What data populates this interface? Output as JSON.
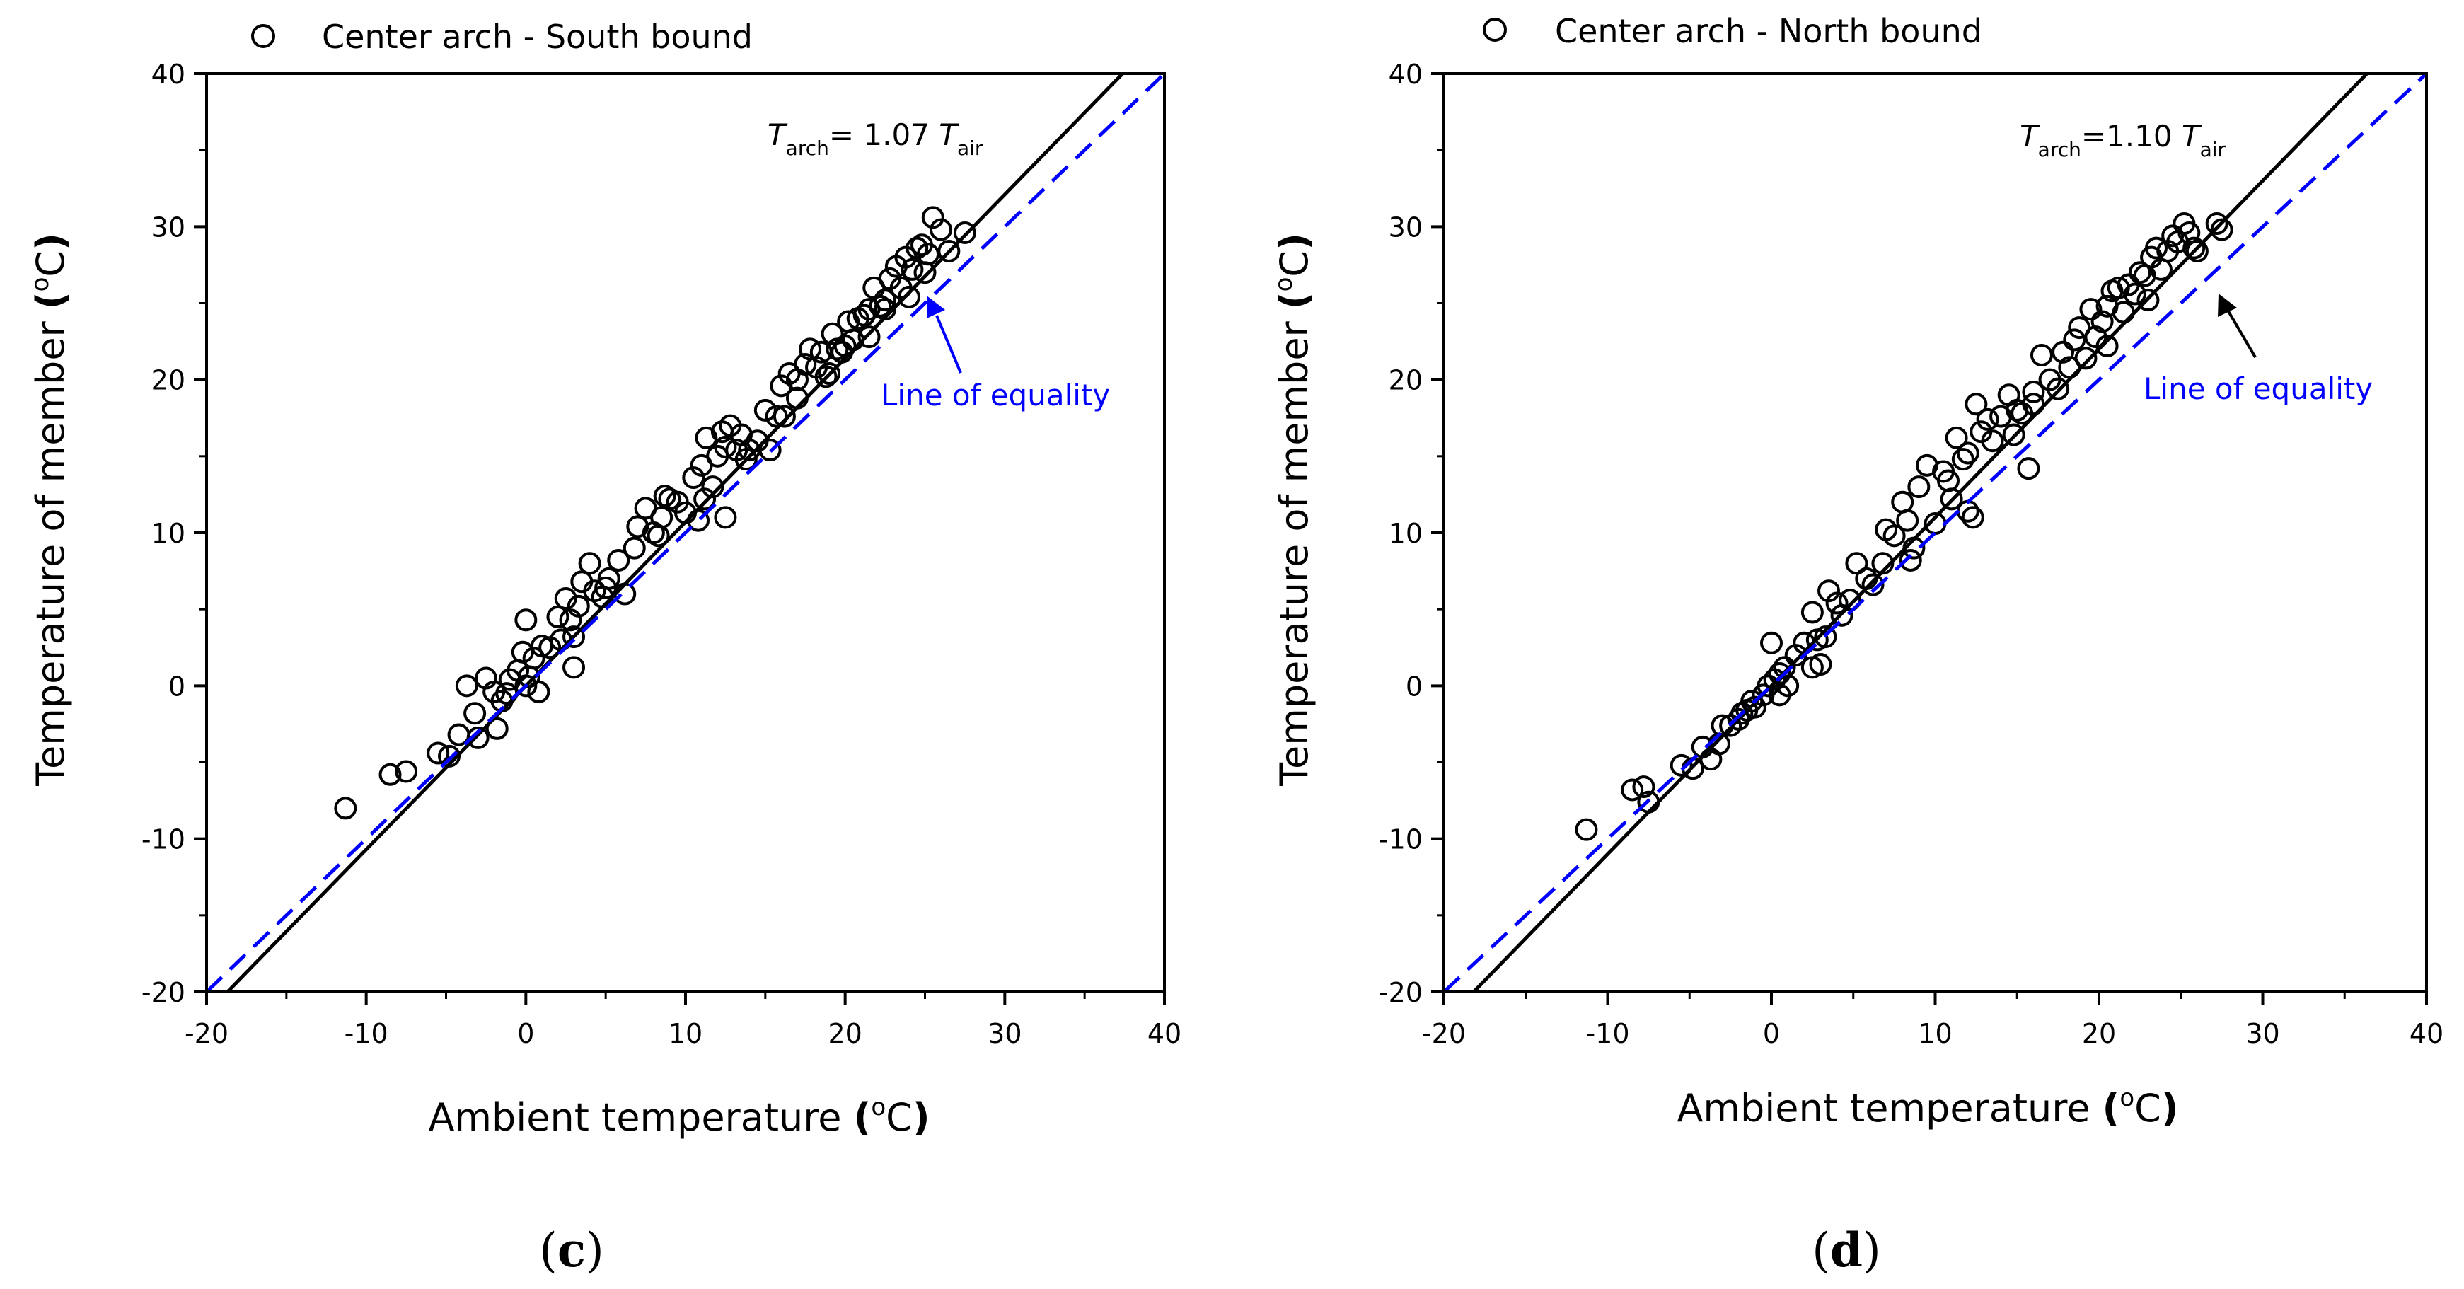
{
  "chart_data": [
    {
      "type": "scatter",
      "panel": "(c)",
      "panel_open": "(",
      "panel_letter": "c",
      "panel_close": ")",
      "xlabel": "Ambient temperature (oC)",
      "xlabel_main": "Ambient temperature ",
      "ylabel": "Temperature of member (oC)",
      "ylabel_main": "Temperature of member ",
      "unit_open": "(",
      "unit_sup": "o",
      "unit_c": "C",
      "unit_close": ")",
      "xlim": [
        -20,
        40
      ],
      "ylim": [
        -20,
        40
      ],
      "xticks": [
        -20,
        -10,
        0,
        10,
        20,
        30,
        40
      ],
      "yticks": [
        -20,
        -10,
        0,
        10,
        20,
        30,
        40
      ],
      "xtick_labels": [
        "-20",
        "-10",
        "0",
        "10",
        "20",
        "30",
        "40"
      ],
      "ytick_labels": [
        "-20",
        "-10",
        "0",
        "10",
        "20",
        "30",
        "40"
      ],
      "legend": "Center arch - South bound",
      "series": [
        {
          "name": "Center arch - South bound",
          "marker": "open-circle",
          "x": [
            -11.3,
            -8.5,
            -7.5,
            -5.5,
            -4.8,
            -4.2,
            -3.7,
            -3.2,
            -2.5,
            -2.0,
            -1.8,
            -1.5,
            -1.2,
            -1.0,
            -0.5,
            -0.2,
            0.0,
            0.2,
            0.5,
            0.8,
            1.0,
            1.5,
            2.0,
            2.5,
            2.8,
            3.0,
            3.3,
            3.5,
            4.0,
            4.3,
            4.8,
            5.2,
            5.8,
            6.2,
            6.8,
            7.0,
            7.5,
            8.0,
            8.3,
            8.7,
            9.0,
            9.5,
            10.0,
            10.5,
            10.8,
            11.0,
            11.3,
            11.7,
            12.0,
            12.3,
            12.5,
            12.8,
            13.2,
            13.5,
            14.0,
            14.5,
            15.0,
            15.3,
            15.7,
            16.0,
            16.5,
            17.0,
            17.5,
            17.8,
            18.2,
            18.5,
            18.8,
            19.2,
            19.5,
            19.8,
            20.2,
            20.5,
            20.8,
            21.2,
            21.5,
            21.8,
            22.2,
            22.5,
            22.8,
            23.2,
            23.5,
            23.8,
            24.2,
            24.5,
            24.8,
            25.2,
            25.5,
            26.0,
            26.5,
            27.5,
            0.0,
            3.0,
            5.0,
            12.5,
            17.0,
            19.0,
            21.5,
            24.0,
            -3.0,
            0.8,
            2.2,
            8.5,
            11.2,
            13.8,
            16.2,
            20.0,
            22.5,
            25.0
          ],
          "y": [
            -8.0,
            -5.8,
            -5.6,
            -4.4,
            -4.6,
            -3.2,
            0.0,
            -1.8,
            0.5,
            -0.4,
            -2.8,
            -1.0,
            -0.5,
            0.4,
            1.0,
            2.2,
            4.3,
            0.6,
            1.8,
            -0.4,
            2.6,
            2.5,
            4.5,
            5.7,
            4.3,
            1.2,
            5.2,
            6.8,
            8.0,
            6.2,
            5.8,
            7.0,
            8.2,
            6.0,
            9.0,
            10.4,
            11.6,
            10.0,
            9.8,
            12.4,
            12.2,
            12.0,
            11.3,
            13.6,
            10.8,
            14.4,
            16.2,
            13.0,
            15.0,
            16.6,
            11.0,
            17.0,
            15.4,
            16.4,
            15.4,
            16.0,
            18.0,
            15.4,
            17.6,
            19.6,
            20.4,
            20.0,
            21.0,
            22.0,
            20.8,
            21.8,
            20.2,
            23.0,
            22.0,
            21.8,
            23.8,
            22.6,
            24.0,
            24.2,
            24.6,
            26.0,
            24.8,
            25.2,
            26.6,
            27.4,
            26.0,
            28.0,
            27.2,
            28.6,
            28.8,
            28.2,
            30.6,
            29.8,
            28.4,
            29.6,
            0.0,
            3.2,
            6.4,
            15.6,
            18.8,
            20.4,
            22.8,
            25.4,
            -3.4,
            -0.4,
            3.0,
            11.0,
            12.2,
            14.8,
            17.6,
            22.2,
            24.6,
            27.0
          ]
        },
        {
          "name": "T_arch = 1.07 T_air",
          "type": "line",
          "style": "solid",
          "color": "#000000",
          "slope": 1.07,
          "intercept": 0
        },
        {
          "name": "Line of equality",
          "type": "line",
          "style": "dashed",
          "color": "#0000ff",
          "slope": 1.0,
          "intercept": 0
        }
      ],
      "annotations": [
        {
          "role": "fit_equation",
          "text": "T_arch= 1.07 T_air",
          "t1": "T",
          "s1": "arch",
          "mid": "= 1.07 ",
          "t2": "T",
          "s2": "air"
        },
        {
          "role": "equality_label",
          "text": "Line of equality",
          "color": "#0000ff",
          "arrow_color": "#0000ff",
          "arrow_target": [
            25.3,
            25.3
          ]
        }
      ]
    },
    {
      "type": "scatter",
      "panel": "(d)",
      "panel_open": "(",
      "panel_letter": "d",
      "panel_close": ")",
      "xlabel": "Ambient temperature (oC)",
      "xlabel_main": "Ambient temperature ",
      "ylabel": "Temperature of member (oC)",
      "ylabel_main": "Temperature of member ",
      "unit_open": "(",
      "unit_sup": "o",
      "unit_c": "C",
      "unit_close": ")",
      "xlim": [
        -20,
        40
      ],
      "ylim": [
        -20,
        40
      ],
      "xticks": [
        -20,
        -10,
        0,
        10,
        20,
        30,
        40
      ],
      "yticks": [
        -20,
        -10,
        0,
        10,
        20,
        30,
        40
      ],
      "xtick_labels": [
        "-20",
        "-10",
        "0",
        "10",
        "20",
        "30",
        "40"
      ],
      "ytick_labels": [
        "-20",
        "-10",
        "0",
        "10",
        "20",
        "30",
        "40"
      ],
      "legend": "Center arch - North bound",
      "series": [
        {
          "name": "Center arch - North bound",
          "marker": "open-circle",
          "x": [
            -11.3,
            -8.5,
            -7.8,
            -7.5,
            -5.5,
            -4.8,
            -4.2,
            -3.7,
            -3.2,
            -2.5,
            -2.0,
            -1.8,
            -1.5,
            -1.2,
            -1.0,
            -0.5,
            -0.2,
            0.0,
            0.2,
            0.5,
            0.8,
            1.0,
            1.5,
            2.0,
            2.5,
            2.8,
            3.0,
            3.3,
            3.5,
            4.0,
            4.3,
            4.8,
            5.2,
            5.8,
            6.2,
            6.8,
            7.0,
            7.5,
            8.0,
            8.3,
            8.7,
            9.0,
            9.5,
            10.0,
            10.5,
            10.8,
            11.0,
            11.3,
            11.7,
            12.0,
            12.3,
            12.5,
            12.8,
            13.2,
            13.5,
            14.0,
            14.5,
            15.0,
            15.3,
            15.7,
            16.0,
            16.5,
            17.0,
            17.5,
            17.8,
            18.2,
            18.5,
            18.8,
            19.2,
            19.5,
            19.8,
            20.2,
            20.5,
            20.8,
            21.2,
            21.5,
            21.8,
            22.2,
            22.5,
            22.8,
            23.2,
            23.5,
            23.8,
            24.2,
            24.5,
            24.8,
            25.2,
            25.5,
            26.0,
            27.2,
            27.5,
            -3.0,
            0.5,
            2.5,
            8.5,
            12.0,
            14.8,
            16.0,
            20.5,
            23.0,
            25.8
          ],
          "y": [
            -9.4,
            -6.8,
            -6.6,
            -7.6,
            -5.2,
            -5.4,
            -4.0,
            -4.8,
            -3.8,
            -2.6,
            -2.2,
            -1.8,
            -1.6,
            -1.0,
            -1.4,
            -0.6,
            0.0,
            2.8,
            0.4,
            -0.6,
            1.2,
            0.0,
            2.0,
            2.8,
            4.8,
            3.0,
            1.4,
            3.2,
            6.2,
            5.4,
            4.6,
            5.6,
            8.0,
            7.0,
            6.6,
            8.0,
            10.2,
            9.8,
            12.0,
            10.8,
            9.0,
            13.0,
            14.4,
            10.6,
            14.0,
            13.4,
            12.2,
            16.2,
            14.8,
            15.2,
            11.0,
            18.4,
            16.6,
            17.4,
            16.0,
            17.6,
            19.0,
            18.0,
            17.8,
            14.2,
            18.4,
            21.6,
            20.0,
            19.4,
            21.8,
            20.8,
            22.6,
            23.4,
            21.4,
            24.6,
            22.8,
            23.8,
            24.8,
            25.8,
            26.0,
            24.4,
            26.2,
            25.6,
            27.0,
            26.8,
            28.0,
            28.6,
            27.2,
            28.4,
            29.4,
            29.0,
            30.2,
            29.6,
            28.4,
            30.2,
            29.8,
            -2.6,
            0.8,
            1.2,
            8.2,
            11.4,
            16.4,
            19.2,
            22.2,
            25.2,
            28.6
          ]
        },
        {
          "name": "T_arch = 1.10 T_air",
          "type": "line",
          "style": "solid",
          "color": "#000000",
          "slope": 1.1,
          "intercept": 0
        },
        {
          "name": "Line of equality",
          "type": "line",
          "style": "dashed",
          "color": "#0000ff",
          "slope": 1.0,
          "intercept": 0
        }
      ],
      "annotations": [
        {
          "role": "fit_equation",
          "text": "T_arch=1.10 T_air",
          "t1": "T",
          "s1": "arch",
          "mid": "=1.10 ",
          "t2": "T",
          "s2": "air"
        },
        {
          "role": "equality_label",
          "text": "Line of equality",
          "color": "#0000ff",
          "arrow_color": "#000000",
          "arrow_target": [
            24.5,
            25.0
          ]
        }
      ]
    }
  ]
}
